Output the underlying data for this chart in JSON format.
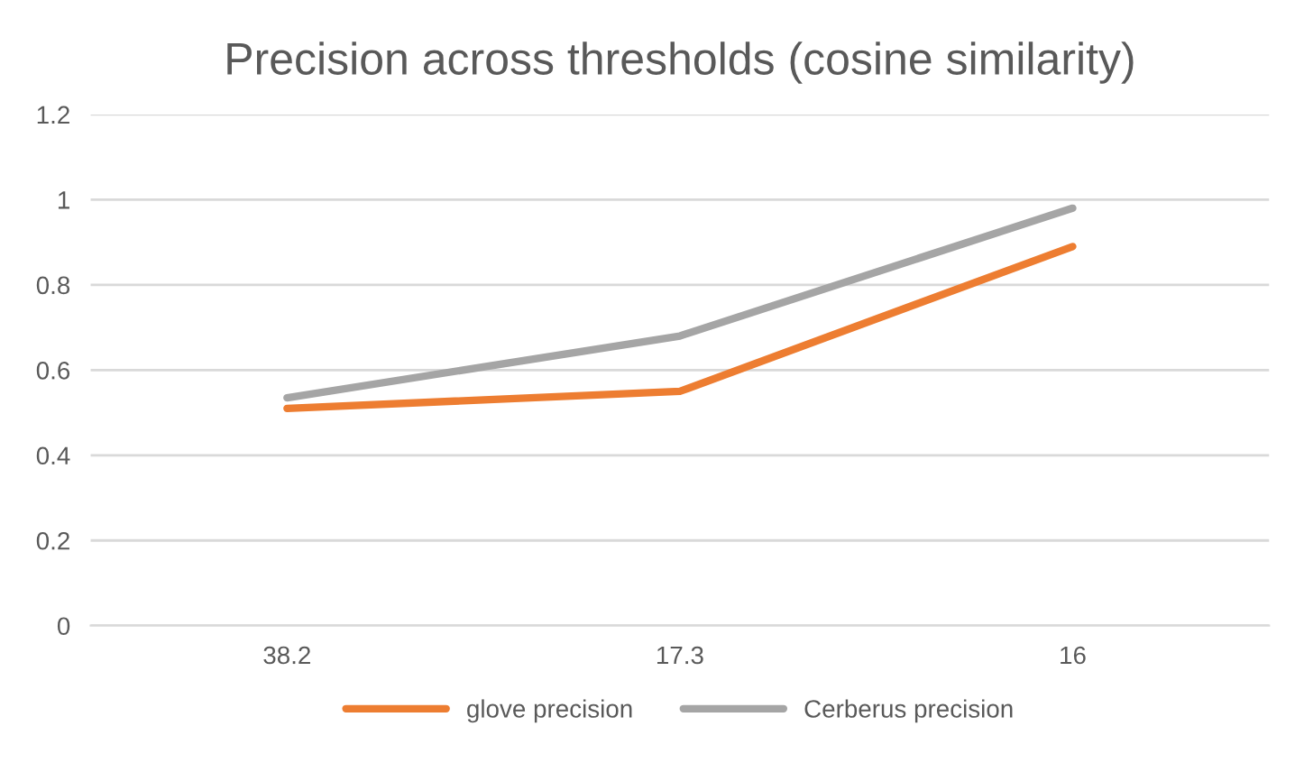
{
  "chart_data": {
    "type": "line",
    "title": "Precision across thresholds (cosine similarity)",
    "categories": [
      "38.2",
      "17.3",
      "16"
    ],
    "series": [
      {
        "name": "glove precision",
        "color": "#ed7d31",
        "values": [
          0.51,
          0.55,
          0.89
        ]
      },
      {
        "name": "Cerberus precision",
        "color": "#a5a5a5",
        "values": [
          0.535,
          0.68,
          0.98
        ]
      }
    ],
    "ylim": [
      0,
      1.2
    ],
    "yticks": [
      0,
      0.2,
      0.4,
      0.6,
      0.8,
      1,
      1.2
    ],
    "grid": "y",
    "legend": "bottom",
    "marker": "none",
    "line_style": "solid"
  }
}
